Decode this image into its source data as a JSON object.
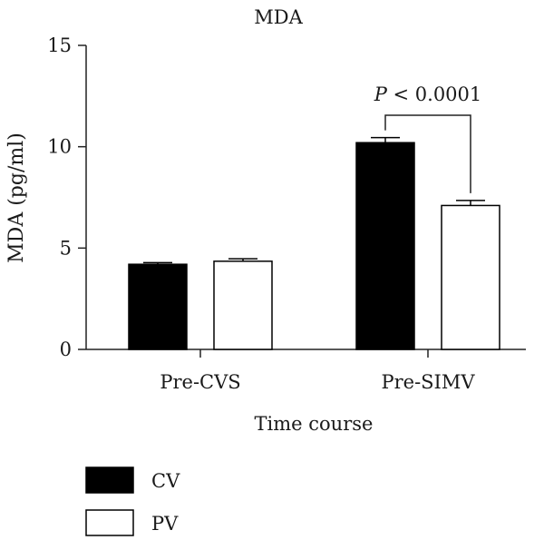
{
  "chart_data": {
    "type": "bar",
    "title": "MDA",
    "xlabel": "Time course",
    "ylabel": "MDA (pg/ml)",
    "ylim": [
      0,
      15
    ],
    "yticks": [
      "0",
      "5",
      "10",
      "15"
    ],
    "categories": [
      "Pre-CVS",
      "Pre-SIMV"
    ],
    "series": [
      {
        "name": "CV",
        "values": [
          4.2,
          10.2
        ],
        "errors": [
          0.08,
          0.25
        ],
        "fill": "#000000"
      },
      {
        "name": "PV",
        "values": [
          4.35,
          7.1
        ],
        "errors": [
          0.12,
          0.25
        ],
        "fill": "#ffffff"
      }
    ],
    "annotation": {
      "prefix": "P",
      "text": " < 0.0001",
      "category": "Pre-SIMV"
    },
    "legend": {
      "placement": "bottom-left",
      "items": [
        "CV",
        "PV"
      ]
    },
    "grid": false
  }
}
